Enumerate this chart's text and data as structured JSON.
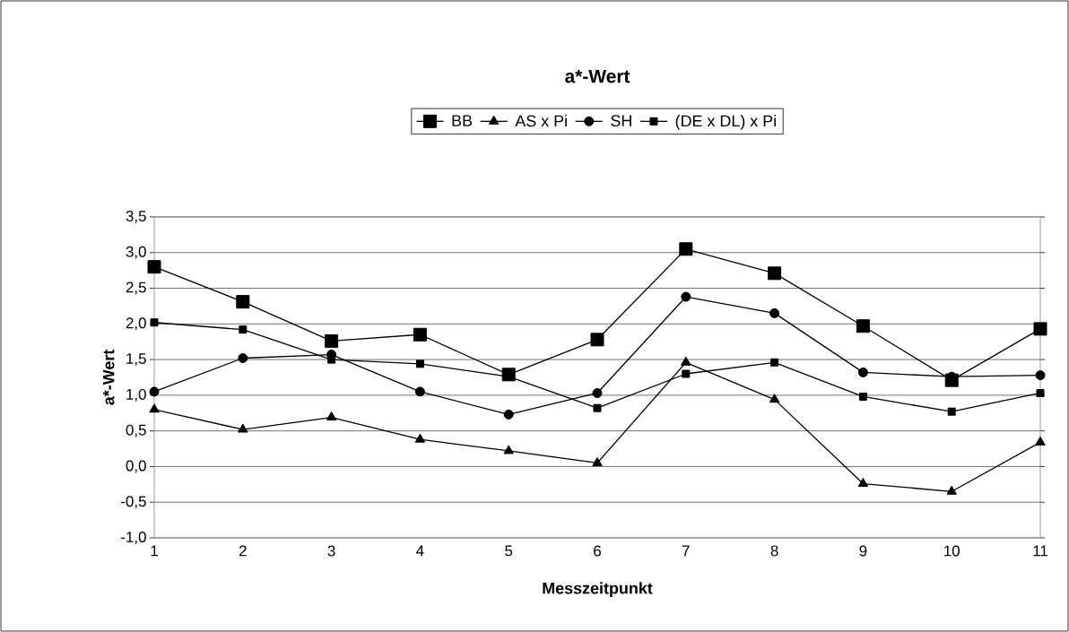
{
  "chart_data": {
    "type": "line",
    "title": "a*-Wert",
    "xlabel": "Messzeitpunkt",
    "ylabel": "a*-Wert",
    "categories": [
      "1",
      "2",
      "3",
      "4",
      "5",
      "6",
      "7",
      "8",
      "9",
      "10",
      "11"
    ],
    "series": [
      {
        "name": "BB",
        "color": "#000000",
        "marker": "square",
        "values": [
          2.8,
          2.31,
          1.76,
          1.85,
          1.29,
          1.78,
          3.05,
          2.71,
          1.97,
          1.21,
          1.93
        ]
      },
      {
        "name": "AS x Pi",
        "color": "#000000",
        "marker": "triangle",
        "values": [
          0.8,
          0.52,
          0.69,
          0.38,
          0.22,
          0.05,
          1.46,
          0.94,
          -0.24,
          -0.35,
          0.34
        ]
      },
      {
        "name": "SH",
        "color": "#000000",
        "marker": "circle",
        "values": [
          1.05,
          1.52,
          1.57,
          1.05,
          0.73,
          1.03,
          2.38,
          2.15,
          1.32,
          1.26,
          1.28
        ]
      },
      {
        "name": "(DE x DL) x Pi",
        "color": "#000000",
        "marker": "square",
        "values": [
          2.02,
          1.92,
          1.5,
          1.44,
          1.26,
          0.82,
          1.3,
          1.46,
          0.98,
          0.77,
          1.03
        ]
      }
    ],
    "ylim": [
      -1.0,
      3.5
    ],
    "yticks": [
      {
        "value": -1.0,
        "label": "-1,0"
      },
      {
        "value": -0.5,
        "label": "-0,5"
      },
      {
        "value": 0.0,
        "label": "0,0"
      },
      {
        "value": 0.5,
        "label": "0,5"
      },
      {
        "value": 1.0,
        "label": "1,0"
      },
      {
        "value": 1.5,
        "label": "1,5"
      },
      {
        "value": 2.0,
        "label": "2,0"
      },
      {
        "value": 2.5,
        "label": "2,5"
      },
      {
        "value": 3.0,
        "label": "3,0"
      },
      {
        "value": 3.5,
        "label": "3,5"
      }
    ],
    "grid": "y",
    "legend": "top",
    "line_style": "solid"
  }
}
